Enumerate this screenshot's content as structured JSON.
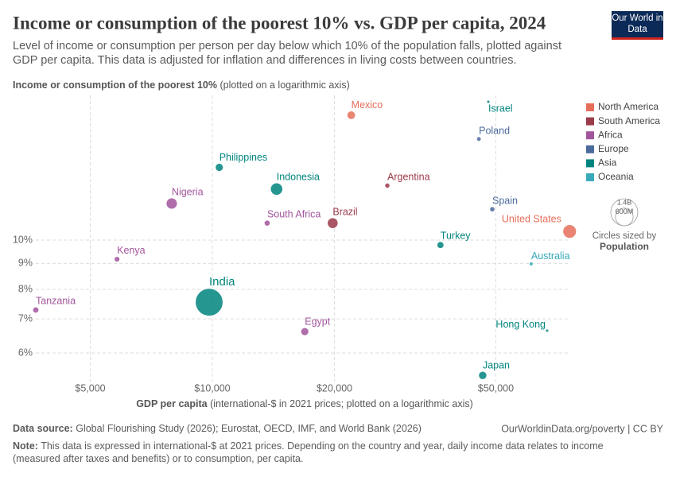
{
  "chart_data": {
    "type": "scatter",
    "title": "Income or consumption of the poorest 10% vs. GDP per capita, 2024",
    "subtitle": "Level of income or consumption per person per day below which 10% of the population falls, plotted against GDP per capita. This data is adjusted for inflation and differences in living costs between countries.",
    "logo": "Our World in Data",
    "y_label": "Income or consumption of the poorest 10%",
    "y_label_note": "(plotted on a logarithmic axis)",
    "x_label": "GDP per capita",
    "x_label_note": "(international-$ in 2021 prices; plotted on a logarithmic axis)",
    "log_x": true,
    "log_y": true,
    "grid": true,
    "xlim": [
      3500,
      80000
    ],
    "xticks": [
      {
        "value": 5000,
        "label": "$5,000"
      },
      {
        "value": 10000,
        "label": "$10,000"
      },
      {
        "value": 20000,
        "label": "$20,000"
      },
      {
        "value": 50000,
        "label": "$50,000"
      }
    ],
    "ylim": [
      5.2,
      19.5
    ],
    "yticks": [
      {
        "value": 6,
        "label": "6%"
      },
      {
        "value": 7,
        "label": "7%"
      },
      {
        "value": 8,
        "label": "8%"
      },
      {
        "value": 9,
        "label": "9%"
      },
      {
        "value": 10,
        "label": "10%"
      }
    ],
    "series": [
      {
        "name": "North America",
        "color": "#e56e5a",
        "labels": [
          "Mexico",
          "United States"
        ],
        "x": [
          22000,
          76000
        ],
        "values": [
          17.6,
          10.4
        ],
        "sizes": [
          130000000,
          340000000
        ]
      },
      {
        "name": "South America",
        "color": "#9a3a4a",
        "labels": [
          "Argentina",
          "Brazil"
        ],
        "x": [
          27000,
          19800
        ],
        "values": [
          12.8,
          10.8
        ],
        "sizes": [
          46000000,
          211000000
        ]
      },
      {
        "name": "Africa",
        "color": "#a2559c",
        "labels": [
          "Nigeria",
          "South Africa",
          "Kenya",
          "Tanzania",
          "Egypt"
        ],
        "x": [
          7940,
          13650,
          5820,
          3670,
          16900
        ],
        "values": [
          11.8,
          10.8,
          9.17,
          7.29,
          6.61
        ],
        "sizes": [
          230000000,
          63000000,
          56000000,
          68000000,
          115000000
        ]
      },
      {
        "name": "Europe",
        "color": "#4c6a9c",
        "labels": [
          "Poland",
          "Spain"
        ],
        "x": [
          45400,
          49000
        ],
        "values": [
          15.8,
          11.5
        ],
        "sizes": [
          37000000,
          48000000
        ]
      },
      {
        "name": "Asia",
        "color": "#00847e",
        "labels": [
          "Israel",
          "Philippines",
          "Indonesia",
          "Turkey",
          "India",
          "Hong Kong",
          "Japan"
        ],
        "x": [
          47900,
          10400,
          14400,
          36500,
          9820,
          66900,
          46400
        ],
        "values": [
          18.7,
          13.9,
          12.6,
          9.78,
          7.55,
          6.64,
          5.42
        ],
        "sizes": [
          10000000,
          115000000,
          280000000,
          86000000,
          1440000000,
          7500000,
          124000000
        ]
      },
      {
        "name": "Oceania",
        "color": "#38aaba",
        "labels": [
          "Australia"
        ],
        "x": [
          61100
        ],
        "values": [
          8.98
        ],
        "sizes": [
          27000000
        ]
      }
    ],
    "size_legend": [
      {
        "value": 1400000000,
        "label": "1.4B"
      },
      {
        "value": 600000000,
        "label": "600M"
      }
    ],
    "size_legend_title": "Circles sized by",
    "size_legend_variable": "Population",
    "source_label": "Data source:",
    "source": "Global Flourishing Study (2026); Eurostat, OECD, IMF, and World Bank (2026)",
    "url": "OurWorldinData.org/poverty | CC BY",
    "note_label": "Note:",
    "note": "This data is expressed in international-$ at 2021 prices. Depending on the country and year, daily income data relates to income (measured after taxes and benefits) or to consumption, per capita."
  }
}
